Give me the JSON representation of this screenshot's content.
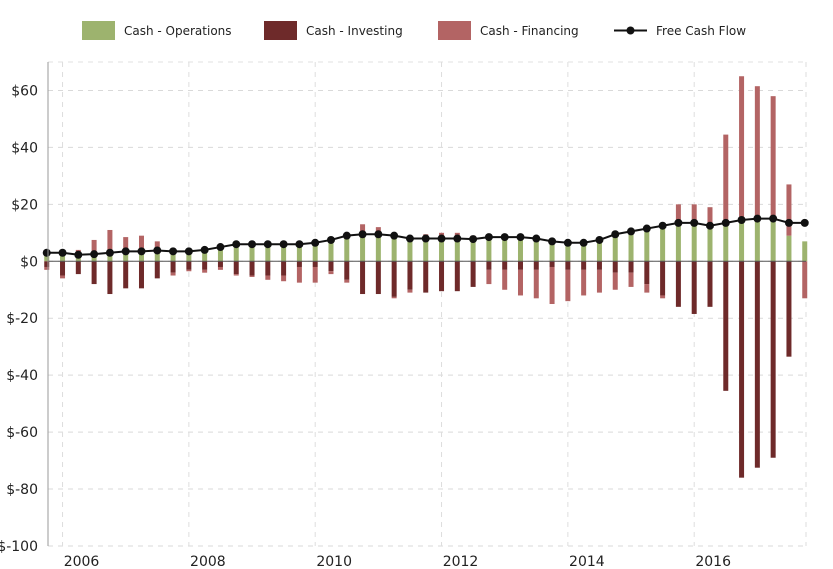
{
  "legend": {
    "items": [
      {
        "label": "Cash - Operations",
        "color": "#9db36e",
        "kind": "bar"
      },
      {
        "label": "Cash - Investing",
        "color": "#6e2a2a",
        "kind": "bar"
      },
      {
        "label": "Cash - Financing",
        "color": "#b36464",
        "kind": "bar"
      },
      {
        "label": "Free Cash Flow",
        "color": "#111111",
        "kind": "line"
      }
    ]
  },
  "chart_data": {
    "type": "bar",
    "stacked": true,
    "title": "",
    "xlabel": "",
    "ylabel": "",
    "ylim": [
      -100,
      70
    ],
    "yticks": [
      -100,
      -80,
      -60,
      -40,
      -20,
      0,
      20,
      40,
      60
    ],
    "ytick_labels": [
      "$-100",
      "$-80",
      "$-60",
      "$-40",
      "$-20",
      "$0",
      "$20",
      "$40",
      "$60"
    ],
    "xlim": [
      2005.75,
      2017.75
    ],
    "xticks": [
      2006,
      2008,
      2010,
      2012,
      2014,
      2016
    ],
    "xtick_labels": [
      "2006",
      "2008",
      "2010",
      "2012",
      "2014",
      "2016"
    ],
    "grid": true,
    "legend_position": "top",
    "x": [
      2005.75,
      2006.0,
      2006.25,
      2006.5,
      2006.75,
      2007.0,
      2007.25,
      2007.5,
      2007.75,
      2008.0,
      2008.25,
      2008.5,
      2008.75,
      2009.0,
      2009.25,
      2009.5,
      2009.75,
      2010.0,
      2010.25,
      2010.5,
      2010.75,
      2011.0,
      2011.25,
      2011.5,
      2011.75,
      2012.0,
      2012.25,
      2012.5,
      2012.75,
      2013.0,
      2013.25,
      2013.5,
      2013.75,
      2014.0,
      2014.25,
      2014.5,
      2014.75,
      2015.0,
      2015.25,
      2015.5,
      2015.75,
      2016.0,
      2016.25,
      2016.5,
      2016.75,
      2017.0,
      2017.25,
      2017.5,
      2017.75
    ],
    "series": [
      {
        "name": "Cash - Operations",
        "type": "bar",
        "values": [
          3,
          3,
          2.5,
          2.5,
          3,
          3.5,
          3.5,
          4,
          3,
          3.5,
          4,
          5,
          6,
          6,
          6,
          6,
          6,
          7,
          8,
          9,
          10,
          10,
          9,
          8,
          8,
          8,
          8,
          8,
          8.5,
          9,
          9,
          8,
          7,
          6.5,
          6.5,
          7,
          9,
          10,
          11,
          12,
          13,
          13,
          12,
          13,
          14,
          14,
          14,
          9,
          7
        ]
      },
      {
        "name": "Cash - Investing",
        "type": "bar",
        "values": [
          -2,
          -5,
          -4.5,
          -8,
          -11.5,
          -9.5,
          -9.5,
          -6,
          -4,
          -3,
          -3,
          -2,
          -4.5,
          -5,
          -5,
          -5,
          -2,
          -2,
          -3.5,
          -6.5,
          -11.5,
          -11.5,
          -12.5,
          -10,
          -11,
          -10.5,
          -10.5,
          -9,
          -3,
          -3,
          -3,
          -3,
          -2,
          -3,
          -3,
          -3,
          -4,
          -4,
          -8,
          -12,
          -16,
          -18.5,
          -16,
          -45.5,
          -76,
          -72.5,
          -69,
          -33.5,
          0
        ]
      },
      {
        "name": "Cash - Financing",
        "type": "bar",
        "values": [
          -1,
          -1,
          1.5,
          5,
          8,
          5,
          5.5,
          3,
          -1,
          -0.5,
          -1,
          -1,
          -0.5,
          -0.5,
          -1.5,
          -2,
          -5.5,
          -5.5,
          -1,
          -1,
          3,
          2,
          -0.5,
          -1,
          1.5,
          2,
          2,
          1,
          -5,
          -7,
          -9,
          -10,
          -13,
          -11,
          -9,
          -8,
          -6,
          -5,
          -3,
          -1,
          7,
          7,
          7,
          31.5,
          51,
          47.5,
          44,
          18,
          -13
        ]
      },
      {
        "name": "Free Cash Flow",
        "type": "line",
        "values": [
          3,
          3,
          2.3,
          2.5,
          3,
          3.5,
          3.5,
          3.8,
          3.5,
          3.5,
          4,
          5,
          6,
          6,
          6,
          6,
          6,
          6.5,
          7.5,
          9,
          9.5,
          9.5,
          9,
          8,
          8,
          8,
          8,
          7.8,
          8.5,
          8.5,
          8.5,
          8,
          7,
          6.5,
          6.5,
          7.5,
          9.5,
          10.5,
          11.5,
          12.5,
          13.5,
          13.5,
          12.5,
          13.5,
          14.5,
          15,
          15,
          13.5,
          13.5
        ]
      }
    ]
  }
}
